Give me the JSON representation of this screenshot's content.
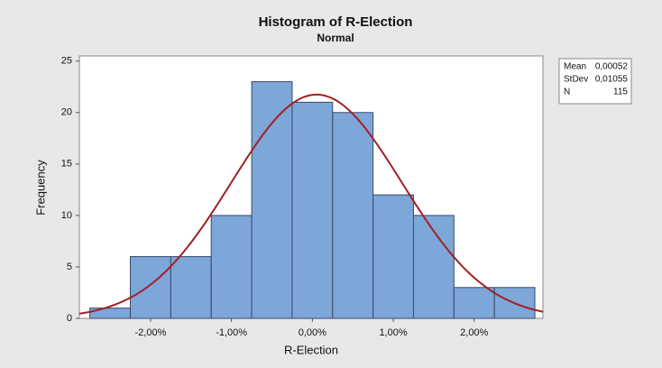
{
  "chart_data": {
    "type": "histogram",
    "title": "Histogram of R-Election",
    "subtitle": "Normal",
    "x_label": "R-Election",
    "y_label": "Frequency",
    "bins": [
      -2.75,
      -2.25,
      -1.75,
      -1.25,
      -0.75,
      -0.25,
      0.25,
      0.75,
      1.25,
      1.75,
      2.25,
      2.75
    ],
    "values": [
      1,
      6,
      6,
      10,
      23,
      21,
      20,
      12,
      10,
      3,
      3
    ],
    "color": "#7da6d9",
    "edge_color": "#3a4a66",
    "curve_color": "#a31f24",
    "xlim": [
      -2.88,
      2.85
    ],
    "xticks": [
      {
        "value": -2,
        "label": "-2,00%"
      },
      {
        "value": -1,
        "label": "-1,00%"
      },
      {
        "value": 0,
        "label": "0,00%"
      },
      {
        "value": 1,
        "label": "1,00%"
      },
      {
        "value": 2,
        "label": "2,00%"
      }
    ],
    "ylim": [
      0,
      25.5
    ],
    "yticks": [
      0,
      5,
      10,
      15,
      20,
      25
    ],
    "stats": [
      {
        "label": "Mean",
        "value": 0.00052,
        "value_label": "0,00052"
      },
      {
        "label": "StDev",
        "value": 0.01055,
        "value_label": "0,01055"
      },
      {
        "label": "N",
        "value": 115,
        "value_label": "115"
      }
    ]
  }
}
